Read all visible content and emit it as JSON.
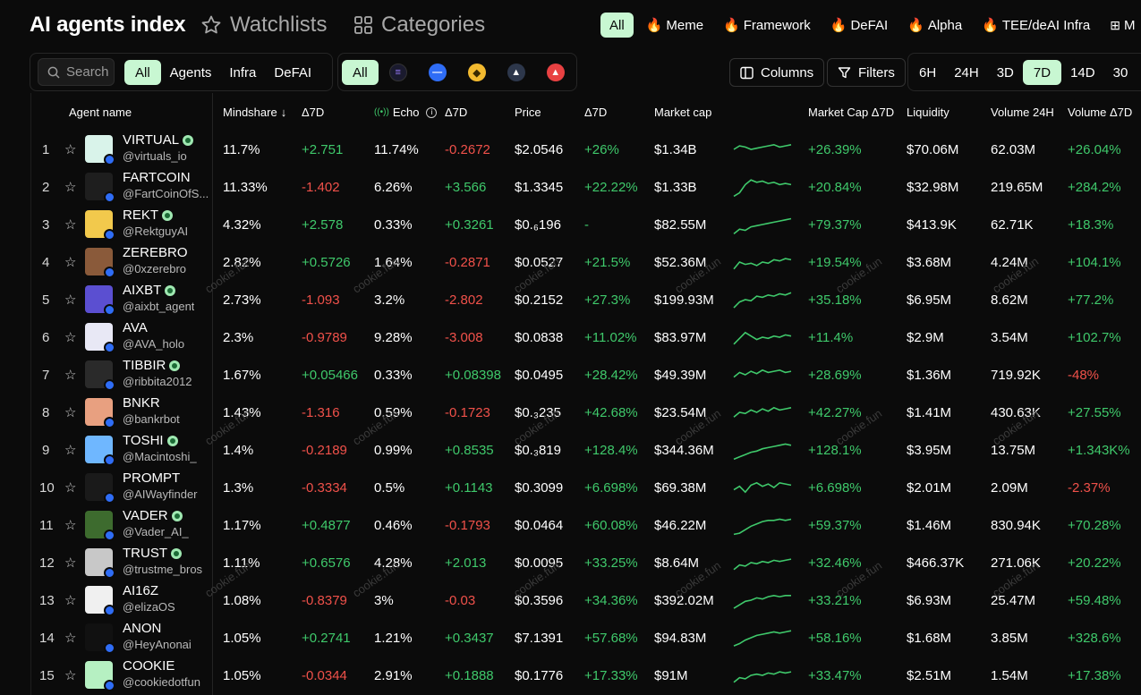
{
  "header": {
    "title": "AI agents index",
    "watchlists": "Watchlists",
    "categories": "Categories",
    "category_pills": [
      {
        "label": "All",
        "fire": false,
        "active": true
      },
      {
        "label": "Meme",
        "fire": true,
        "active": false
      },
      {
        "label": "Framework",
        "fire": true,
        "active": false
      },
      {
        "label": "DeFAI",
        "fire": true,
        "active": false
      },
      {
        "label": "Alpha",
        "fire": true,
        "active": false
      },
      {
        "label": "TEE/deAI Infra",
        "fire": true,
        "active": false
      },
      {
        "label": "M",
        "fire": false,
        "active": false
      }
    ]
  },
  "toolbar": {
    "search_placeholder": "Search",
    "type_filters": [
      "All",
      "Agents",
      "Infra",
      "DeFAI"
    ],
    "chain_all": "All",
    "chains": [
      {
        "name": "solana",
        "color": "#1a1a2e"
      },
      {
        "name": "base",
        "color": "#2f6df6"
      },
      {
        "name": "bnb",
        "color": "#f3ba2f"
      },
      {
        "name": "arbitrum",
        "color": "#2d374b"
      },
      {
        "name": "avalanche",
        "color": "#e84142"
      }
    ],
    "columns": "Columns",
    "filters": "Filters",
    "timeframes": [
      "6H",
      "24H",
      "3D",
      "7D",
      "14D",
      "30"
    ],
    "active_timeframe": "7D"
  },
  "columns": {
    "agent": "Agent name",
    "mindshare": "Mindshare",
    "d7a": "Δ7D",
    "echo": "Echo",
    "d7b": "Δ7D",
    "price": "Price",
    "d7c": "Δ7D",
    "mcap": "Market cap",
    "mcapd": "Market Cap Δ7D",
    "liq": "Liquidity",
    "vol": "Volume 24H",
    "vold": "Volume Δ7D"
  },
  "watermark": "cookie.fun",
  "rows": [
    {
      "rank": "1",
      "name": "VIRTUAL",
      "handle": "@virtuals_io",
      "verified": true,
      "avatar": "#d9f3ea",
      "mindshare": "11.7%",
      "ms_d": "+2.751",
      "echo": "11.74%",
      "echo_d": "-0.2672",
      "price": "$2.0546",
      "price_d": "+26%",
      "mcap": "$1.34B",
      "mcap_d": "+26.39%",
      "liq": "$70.06M",
      "vol": "62.03M",
      "vol_d": "+26.04%",
      "spark": [
        0.5,
        0.35,
        0.4,
        0.5,
        0.45,
        0.4,
        0.35,
        0.3,
        0.4,
        0.35,
        0.3
      ]
    },
    {
      "rank": "2",
      "name": "FARTCOIN",
      "handle": "@FartCoinOfS...",
      "verified": false,
      "avatar": "#1e1e1e",
      "mindshare": "11.33%",
      "ms_d": "-1.402",
      "echo": "6.26%",
      "echo_d": "+3.566",
      "price": "$1.3345",
      "price_d": "+22.22%",
      "mcap": "$1.33B",
      "mcap_d": "+20.84%",
      "liq": "$32.98M",
      "vol": "219.65M",
      "vol_d": "+284.2%",
      "spark": [
        0.9,
        0.75,
        0.4,
        0.2,
        0.3,
        0.25,
        0.35,
        0.3,
        0.4,
        0.35,
        0.4
      ]
    },
    {
      "rank": "3",
      "name": "REKT",
      "handle": "@RektguyAI",
      "verified": true,
      "avatar": "#f2c94c",
      "mindshare": "4.32%",
      "ms_d": "+2.578",
      "echo": "0.33%",
      "echo_d": "+0.3261",
      "price": "$0.₆196",
      "price_d": "-",
      "mcap": "$82.55M",
      "mcap_d": "+79.37%",
      "liq": "$413.9K",
      "vol": "62.71K",
      "vol_d": "+18.3%",
      "spark": [
        0.9,
        0.7,
        0.75,
        0.6,
        0.55,
        0.5,
        0.45,
        0.4,
        0.35,
        0.3,
        0.25
      ]
    },
    {
      "rank": "4",
      "name": "ZEREBRO",
      "handle": "@0xzerebro",
      "verified": false,
      "avatar": "#8a5a3a",
      "mindshare": "2.82%",
      "ms_d": "+0.5726",
      "echo": "1.64%",
      "echo_d": "-0.2871",
      "price": "$0.0527",
      "price_d": "+21.5%",
      "mcap": "$52.36M",
      "mcap_d": "+19.54%",
      "liq": "$3.68M",
      "vol": "4.24M",
      "vol_d": "+104.1%",
      "spark": [
        0.8,
        0.5,
        0.6,
        0.55,
        0.65,
        0.5,
        0.55,
        0.4,
        0.45,
        0.35,
        0.4
      ]
    },
    {
      "rank": "5",
      "name": "AIXBT",
      "handle": "@aixbt_agent",
      "verified": true,
      "avatar": "#5b4fd1",
      "mindshare": "2.73%",
      "ms_d": "-1.093",
      "echo": "3.2%",
      "echo_d": "-2.802",
      "price": "$0.2152",
      "price_d": "+27.3%",
      "mcap": "$199.93M",
      "mcap_d": "+35.18%",
      "liq": "$6.95M",
      "vol": "8.62M",
      "vol_d": "+77.2%",
      "spark": [
        0.85,
        0.6,
        0.5,
        0.55,
        0.35,
        0.4,
        0.3,
        0.35,
        0.25,
        0.3,
        0.2
      ]
    },
    {
      "rank": "6",
      "name": "AVA",
      "handle": "@AVA_holo",
      "verified": false,
      "avatar": "#e8e8f5",
      "mindshare": "2.3%",
      "ms_d": "-0.9789",
      "echo": "9.28%",
      "echo_d": "-3.008",
      "price": "$0.0838",
      "price_d": "+11.02%",
      "mcap": "$83.97M",
      "mcap_d": "+11.4%",
      "liq": "$2.9M",
      "vol": "3.54M",
      "vol_d": "+102.7%",
      "spark": [
        0.8,
        0.55,
        0.3,
        0.45,
        0.6,
        0.5,
        0.55,
        0.45,
        0.5,
        0.4,
        0.45
      ]
    },
    {
      "rank": "7",
      "name": "TIBBIR",
      "handle": "@ribbita2012",
      "verified": true,
      "avatar": "#2a2a2a",
      "mindshare": "1.67%",
      "ms_d": "+0.05466",
      "echo": "0.33%",
      "echo_d": "+0.08398",
      "price": "$0.0495",
      "price_d": "+28.42%",
      "mcap": "$49.39M",
      "mcap_d": "+28.69%",
      "liq": "$1.36M",
      "vol": "719.92K",
      "vol_d": "-48%",
      "spark": [
        0.6,
        0.4,
        0.5,
        0.35,
        0.45,
        0.3,
        0.4,
        0.35,
        0.3,
        0.4,
        0.35
      ]
    },
    {
      "rank": "8",
      "name": "BNKR",
      "handle": "@bankrbot",
      "verified": false,
      "avatar": "#e8a080",
      "mindshare": "1.43%",
      "ms_d": "-1.316",
      "echo": "0.59%",
      "echo_d": "-0.1723",
      "price": "$0.₃235",
      "price_d": "+42.68%",
      "mcap": "$23.54M",
      "mcap_d": "+42.27%",
      "liq": "$1.41M",
      "vol": "430.63K",
      "vol_d": "+27.55%",
      "spark": [
        0.7,
        0.5,
        0.55,
        0.4,
        0.5,
        0.35,
        0.45,
        0.3,
        0.4,
        0.35,
        0.3
      ]
    },
    {
      "rank": "9",
      "name": "TOSHI",
      "handle": "@Macintoshi_",
      "verified": true,
      "avatar": "#6fb7ff",
      "mindshare": "1.4%",
      "ms_d": "-0.2189",
      "echo": "0.99%",
      "echo_d": "+0.8535",
      "price": "$0.₃819",
      "price_d": "+128.4%",
      "mcap": "$344.36M",
      "mcap_d": "+128.1%",
      "liq": "$3.95M",
      "vol": "13.75M",
      "vol_d": "+1.343K%",
      "spark": [
        0.9,
        0.8,
        0.7,
        0.6,
        0.55,
        0.45,
        0.4,
        0.35,
        0.3,
        0.25,
        0.3
      ]
    },
    {
      "rank": "10",
      "name": "PROMPT",
      "handle": "@AIWayfinder",
      "verified": false,
      "avatar": "#1a1a1a",
      "mindshare": "1.3%",
      "ms_d": "-0.3334",
      "echo": "0.5%",
      "echo_d": "+0.1143",
      "price": "$0.3099",
      "price_d": "+6.698%",
      "mcap": "$69.38M",
      "mcap_d": "+6.698%",
      "liq": "$2.01M",
      "vol": "2.09M",
      "vol_d": "-2.37%",
      "spark": [
        0.6,
        0.45,
        0.7,
        0.4,
        0.3,
        0.45,
        0.35,
        0.5,
        0.3,
        0.35,
        0.4
      ]
    },
    {
      "rank": "11",
      "name": "VADER",
      "handle": "@Vader_AI_",
      "verified": true,
      "avatar": "#3d6b2e",
      "mindshare": "1.17%",
      "ms_d": "+0.4877",
      "echo": "0.46%",
      "echo_d": "-0.1793",
      "price": "$0.0464",
      "price_d": "+60.08%",
      "mcap": "$46.22M",
      "mcap_d": "+59.37%",
      "liq": "$1.46M",
      "vol": "830.94K",
      "vol_d": "+70.28%",
      "spark": [
        0.9,
        0.85,
        0.7,
        0.55,
        0.45,
        0.35,
        0.3,
        0.3,
        0.25,
        0.3,
        0.25
      ]
    },
    {
      "rank": "12",
      "name": "TRUST",
      "handle": "@trustme_bros",
      "verified": true,
      "avatar": "#c8c8c8",
      "mindshare": "1.11%",
      "ms_d": "+0.6576",
      "echo": "4.28%",
      "echo_d": "+2.013",
      "price": "$0.0095",
      "price_d": "+33.25%",
      "mcap": "$8.64M",
      "mcap_d": "+32.46%",
      "liq": "$466.37K",
      "vol": "271.06K",
      "vol_d": "+20.22%",
      "spark": [
        0.8,
        0.6,
        0.65,
        0.5,
        0.55,
        0.45,
        0.5,
        0.4,
        0.45,
        0.4,
        0.35
      ]
    },
    {
      "rank": "13",
      "name": "AI16Z",
      "handle": "@elizaOS",
      "verified": false,
      "avatar": "#f0f0f0",
      "mindshare": "1.08%",
      "ms_d": "-0.8379",
      "echo": "3%",
      "echo_d": "-0.03",
      "price": "$0.3596",
      "price_d": "+34.36%",
      "mcap": "$392.02M",
      "mcap_d": "+33.21%",
      "liq": "$6.93M",
      "vol": "25.47M",
      "vol_d": "+59.48%",
      "spark": [
        0.85,
        0.7,
        0.55,
        0.5,
        0.4,
        0.45,
        0.35,
        0.3,
        0.35,
        0.3,
        0.3
      ]
    },
    {
      "rank": "14",
      "name": "ANON",
      "handle": "@HeyAnonai",
      "verified": false,
      "avatar": "#111111",
      "mindshare": "1.05%",
      "ms_d": "+0.2741",
      "echo": "1.21%",
      "echo_d": "+0.3437",
      "price": "$7.1391",
      "price_d": "+57.68%",
      "mcap": "$94.83M",
      "mcap_d": "+58.16%",
      "liq": "$1.68M",
      "vol": "3.85M",
      "vol_d": "+328.6%",
      "spark": [
        0.85,
        0.75,
        0.6,
        0.5,
        0.4,
        0.35,
        0.3,
        0.25,
        0.3,
        0.25,
        0.2
      ]
    },
    {
      "rank": "15",
      "name": "COOKIE",
      "handle": "@cookiedotfun",
      "verified": false,
      "avatar": "#b6f0c2",
      "mindshare": "1.05%",
      "ms_d": "-0.0344",
      "echo": "2.91%",
      "echo_d": "+0.1888",
      "price": "$0.1776",
      "price_d": "+17.33%",
      "mcap": "$91M",
      "mcap_d": "+33.47%",
      "liq": "$2.51M",
      "vol": "1.54M",
      "vol_d": "+17.38%",
      "spark": [
        0.8,
        0.6,
        0.65,
        0.5,
        0.45,
        0.5,
        0.4,
        0.45,
        0.35,
        0.4,
        0.35
      ]
    }
  ]
}
